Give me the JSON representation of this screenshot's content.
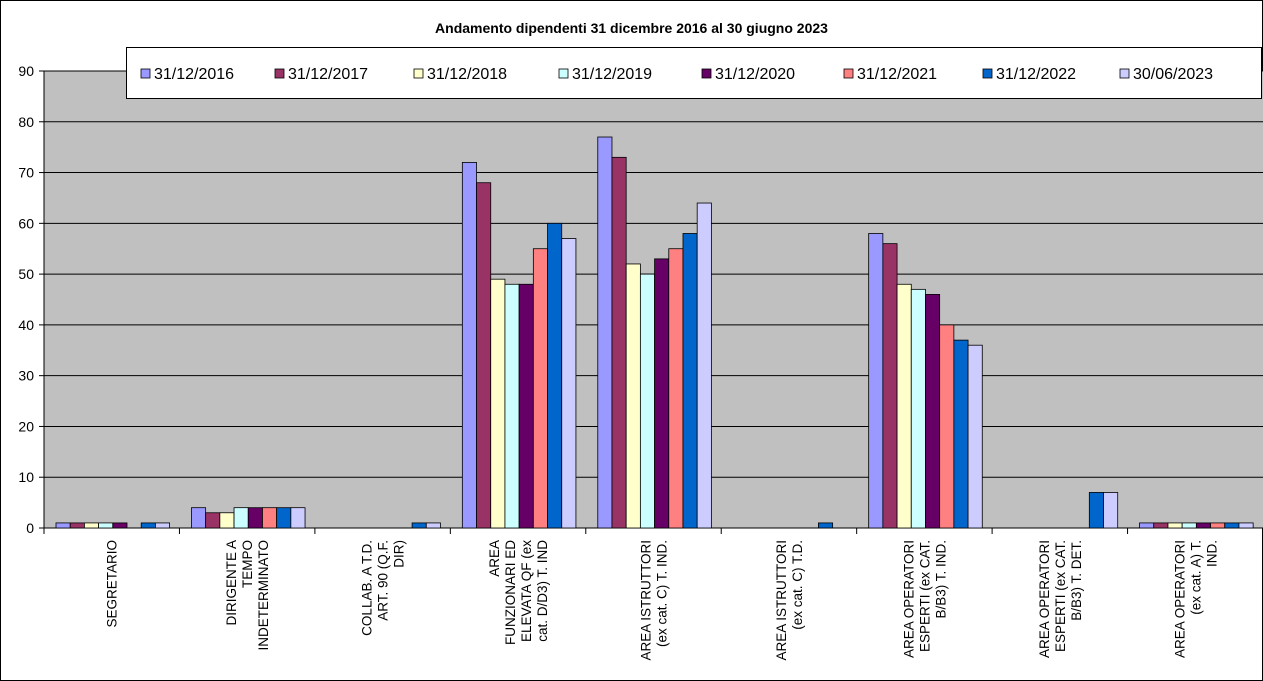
{
  "chart_data": {
    "type": "bar",
    "title": "Andamento dipendenti 31 dicembre 2016 al 30 giugno 2023",
    "xlabel": "",
    "ylabel": "",
    "ylim": [
      0,
      90
    ],
    "yticks": [
      0,
      10,
      20,
      30,
      40,
      50,
      60,
      70,
      80,
      90
    ],
    "grid": true,
    "legend_position": "top",
    "plot_background": "#c0c0c0",
    "categories": [
      [
        "SEGRETARIO"
      ],
      [
        "DIRIGENTE A",
        "TEMPO",
        "INDETERMINATO"
      ],
      [
        "COLLAB. A T.D.",
        "ART. 90 (Q.F.",
        "DIR)"
      ],
      [
        "AREA",
        "FUNZIONARI ED",
        "ELEVATA QF (ex",
        "cat. D/D3) T. IND"
      ],
      [
        "AREA ISTRUTTORI",
        "(ex cat. C) T. IND."
      ],
      [
        "AREA ISTRUTTORI",
        "(ex cat. C) T.D."
      ],
      [
        "AREA OPERATORI",
        "ESPERTI (ex CAT.",
        "B/B3) T.  IND."
      ],
      [
        "AREA OPERATORI",
        "ESPERTI (ex CAT.",
        "B/B3) T.  DET."
      ],
      [
        "AREA OPERATORI",
        "(ex cat.  A) T.",
        "IND."
      ]
    ],
    "series": [
      {
        "name": "31/12/2016",
        "color": "#9999ff",
        "values": [
          1,
          4,
          0,
          72,
          77,
          0,
          58,
          0,
          1
        ]
      },
      {
        "name": "31/12/2017",
        "color": "#993366",
        "values": [
          1,
          3,
          0,
          68,
          73,
          0,
          56,
          0,
          1
        ]
      },
      {
        "name": "31/12/2018",
        "color": "#ffffcc",
        "values": [
          1,
          3,
          0,
          49,
          52,
          0,
          48,
          0,
          1
        ]
      },
      {
        "name": "31/12/2019",
        "color": "#ccffff",
        "values": [
          1,
          4,
          0,
          48,
          50,
          0,
          47,
          0,
          1
        ]
      },
      {
        "name": "31/12/2020",
        "color": "#660066",
        "values": [
          1,
          4,
          0,
          48,
          53,
          0,
          46,
          0,
          1
        ]
      },
      {
        "name": "31/12/2021",
        "color": "#ff8080",
        "values": [
          0,
          4,
          0,
          55,
          55,
          0,
          40,
          0,
          1
        ]
      },
      {
        "name": "31/12/2022",
        "color": "#0066cc",
        "values": [
          1,
          4,
          1,
          60,
          58,
          1,
          37,
          7,
          1
        ]
      },
      {
        "name": "30/06/2023",
        "color": "#ccccff",
        "values": [
          1,
          4,
          1,
          57,
          64,
          0,
          36,
          7,
          1
        ]
      }
    ]
  }
}
